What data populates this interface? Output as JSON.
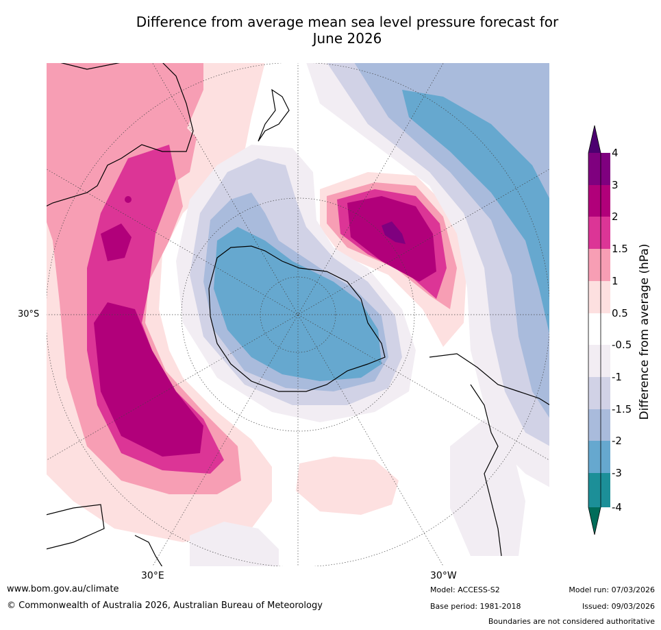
{
  "title_line1": "Difference from average mean sea level pressure forecast for",
  "title_line2": "June 2026",
  "map": {
    "lat_label": "30°S",
    "lon_label_east": "30°E",
    "lon_label_west": "30°W"
  },
  "colorbar": {
    "label": "Difference from average (hPa)",
    "ticks": [
      "4",
      "3",
      "2",
      "1.5",
      "1",
      "0.5",
      "-0.5",
      "-1",
      "-1.5",
      "-2",
      "-3",
      "-4"
    ],
    "colors": {
      "gt4": "#4c0070",
      "3_4": "#7f007f",
      "2_3": "#b1007a",
      "1.5_2": "#dc3596",
      "1_1.5": "#f79eb4",
      "0.5_1": "#fde0e0",
      "neutral": "#ffffff",
      "-1_-0.5": "#f2edf3",
      "-1.5_-1": "#d1d2e6",
      "-2_-1.5": "#a9bbdc",
      "-3_-2": "#66a8cf",
      "-4_-3": "#1c8f98",
      "lt-4": "#016c59"
    }
  },
  "footer": {
    "website": "www.bom.gov.au/climate",
    "copyright": "© Commonwealth of Australia 2026, Australian Bureau of Meteorology",
    "model": "Model: ACCESS-S2",
    "base_period": "Base period: 1981-2018",
    "model_run": "Model run: 07/03/2026",
    "issued": "Issued: 09/03/2026",
    "disclaimer": "Boundaries are not considered authoritative"
  }
}
